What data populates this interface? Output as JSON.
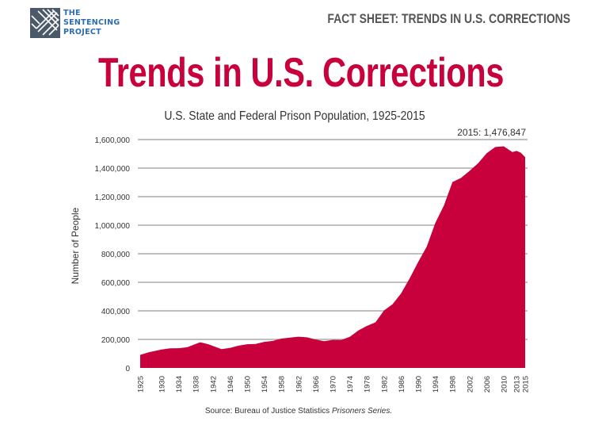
{
  "header": {
    "logo_text": [
      "THE",
      "SENTENCING",
      "PROJECT"
    ],
    "fact_sheet": "FACT SHEET: TRENDS IN U.S. CORRECTIONS",
    "title": "Trends in U.S. Corrections"
  },
  "colors": {
    "accent": "#c8003c",
    "logo_blue": "#2b6cb0",
    "logo_gray": "#4a5a68",
    "grid": "#9a9a9a"
  },
  "chart_data": {
    "type": "area",
    "title": "U.S. State and Federal Prison Population, 1925-2015",
    "xlabel": "",
    "ylabel": "Number of People",
    "ylim": [
      0,
      1600000
    ],
    "xlim": [
      1925,
      2015
    ],
    "y_ticks": [
      0,
      200000,
      400000,
      600000,
      800000,
      1000000,
      1200000,
      1400000,
      1600000
    ],
    "y_tick_labels": [
      "0",
      "200,000",
      "400,000",
      "600,000",
      "800,000",
      "1,000,000",
      "1,200,000",
      "1,400,000",
      "1,600,000"
    ],
    "x_tick_labels": [
      "1925",
      "1930",
      "1934",
      "1938",
      "1942",
      "1946",
      "1950",
      "1954",
      "1958",
      "1962",
      "1966",
      "1970",
      "1974",
      "1978",
      "1982",
      "1986",
      "1990",
      "1994",
      "1998",
      "2002",
      "2006",
      "2010",
      "2013",
      "2015"
    ],
    "grid": true,
    "annotation": "2015: 1,476,847",
    "source_prefix": "Source: Bureau of Justice Statistics ",
    "source_italic": "Prisoners Series.",
    "x": [
      1925,
      1927,
      1930,
      1932,
      1934,
      1936,
      1939,
      1941,
      1944,
      1946,
      1948,
      1950,
      1952,
      1954,
      1956,
      1958,
      1960,
      1962,
      1964,
      1966,
      1968,
      1970,
      1972,
      1974,
      1976,
      1978,
      1980,
      1982,
      1984,
      1986,
      1988,
      1990,
      1992,
      1994,
      1996,
      1998,
      2000,
      2002,
      2004,
      2006,
      2008,
      2010,
      2012,
      2013,
      2014,
      2015
    ],
    "values": [
      91669,
      109983,
      129453,
      137997,
      138316,
      145038,
      179818,
      165439,
      132456,
      140079,
      155977,
      166123,
      168233,
      182901,
      189565,
      205643,
      212953,
      218830,
      214336,
      199654,
      187914,
      196429,
      196092,
      218466,
      262833,
      294396,
      319598,
      402914,
      446460,
      522084,
      627600,
      743382,
      850566,
      1016691,
      1137722,
      1302019,
      1331278,
      1380516,
      1433793,
      1504598,
      1547742,
      1552669,
      1512430,
      1520403,
      1507781,
      1476847
    ]
  }
}
